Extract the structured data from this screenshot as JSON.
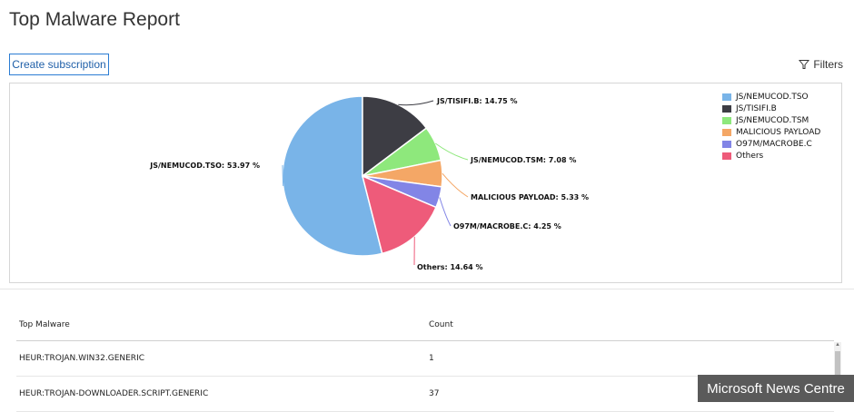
{
  "page": {
    "title": "Top Malware Report",
    "create_subscription_label": "Create subscription",
    "filters_label": "Filters"
  },
  "chart_data": {
    "type": "pie",
    "slices": [
      {
        "label": "JS/NEMUCOD.TSO",
        "value": 53.97,
        "color": "#79b4e8"
      },
      {
        "label": "JS/TISIFI.B",
        "value": 14.75,
        "color": "#3d3d44"
      },
      {
        "label": "JS/NEMUCOD.TSM",
        "value": 7.08,
        "color": "#8ee87c"
      },
      {
        "label": "MALICIOUS PAYLOAD",
        "value": 5.33,
        "color": "#f4a766"
      },
      {
        "label": "O97M/MACROBE.C",
        "value": 4.25,
        "color": "#8285e6"
      },
      {
        "label": "Others",
        "value": 14.64,
        "color": "#ee5b7a"
      }
    ],
    "data_labels": [
      "JS/NEMUCOD.TSO: 53.97 %",
      "JS/TISIFI.B: 14.75 %",
      "JS/NEMUCOD.TSM: 7.08 %",
      "MALICIOUS PAYLOAD: 5.33 %",
      "O97M/MACROBE.C: 4.25 %",
      "Others: 14.64 %"
    ],
    "legend_position": "top-right"
  },
  "table": {
    "headers": [
      "Top Malware",
      "Count"
    ],
    "rows": [
      [
        "HEUR:TROJAN.WIN32.GENERIC",
        "1"
      ],
      [
        "HEUR:TROJAN-DOWNLOADER.SCRIPT.GENERIC",
        "37"
      ]
    ]
  },
  "watermark": "Microsoft News Centre"
}
